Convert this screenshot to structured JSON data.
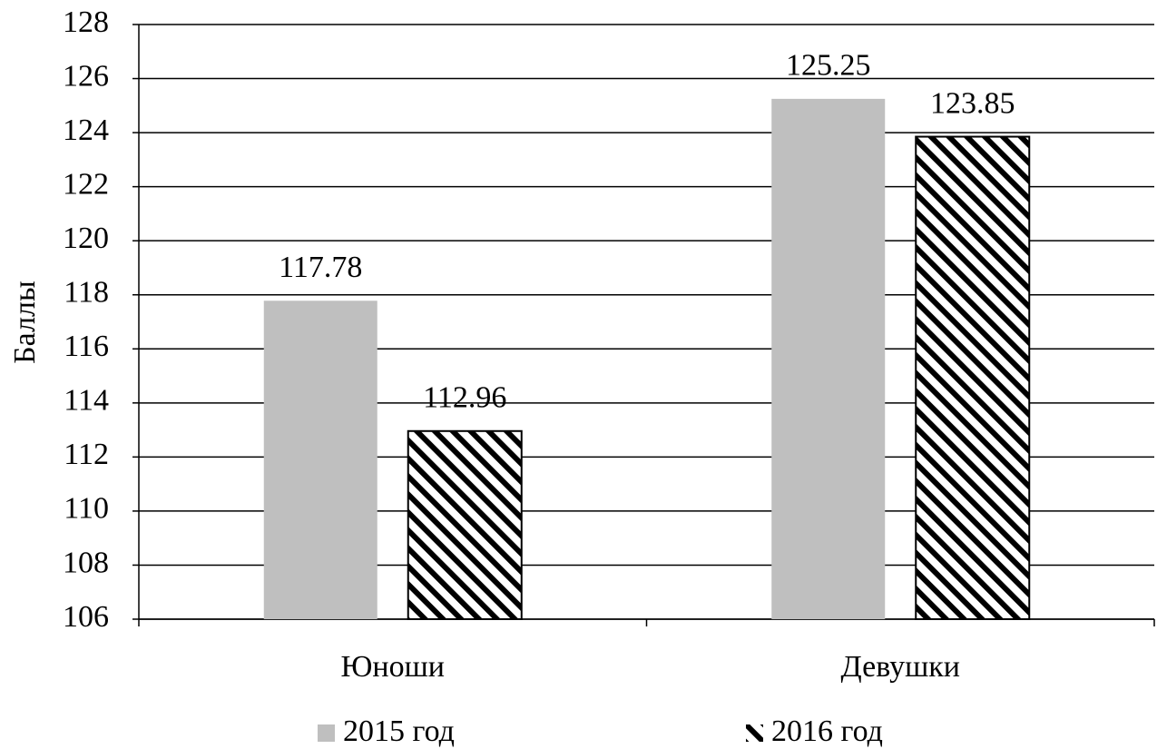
{
  "chart_data": {
    "type": "bar",
    "y_label": "Баллы",
    "categories": [
      "Юноши",
      "Девушки"
    ],
    "series": [
      {
        "name": "2015 год",
        "color": "#bfbfbf",
        "pattern": "solid",
        "values": [
          117.78,
          125.25
        ]
      },
      {
        "name": "2016 год",
        "color": "#000000",
        "pattern": "hatch",
        "values": [
          112.96,
          123.85
        ]
      }
    ],
    "ylim": [
      106,
      128
    ],
    "yticks": [
      106,
      108,
      110,
      112,
      114,
      116,
      118,
      120,
      122,
      124,
      126,
      128
    ],
    "grid": true,
    "legend": "bottom"
  }
}
